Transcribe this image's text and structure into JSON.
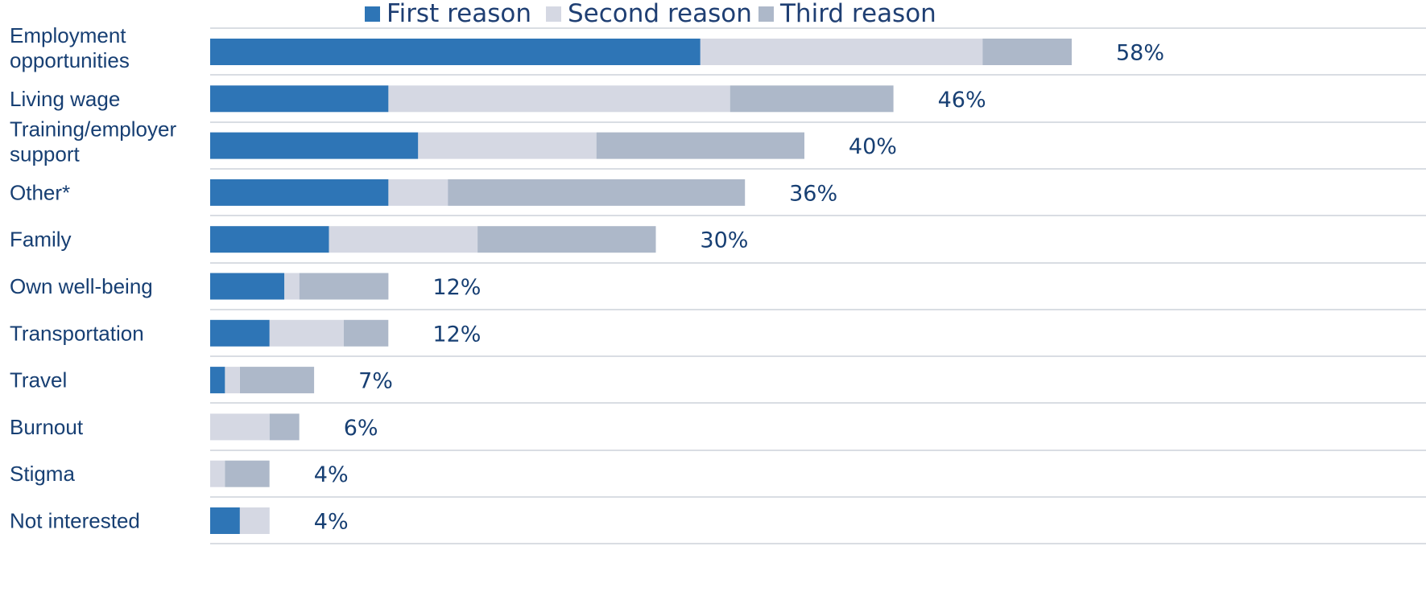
{
  "chart_data": {
    "type": "bar",
    "orientation": "horizontal",
    "stacked": true,
    "title": "",
    "xlabel": "",
    "ylabel": "",
    "legend_position": "top",
    "grid": false,
    "value_unit": "%",
    "categories": [
      "Employment opportunities",
      "Living wage",
      "Training/employer support",
      "Other*",
      "Family",
      "Own well-being",
      "Transportation",
      "Travel",
      "Burnout",
      "Stigma",
      "Not interested"
    ],
    "category_label_lines": [
      [
        "Employment",
        "opportunities"
      ],
      [
        "Living wage"
      ],
      [
        "Training/employer",
        "support"
      ],
      [
        "Other*"
      ],
      [
        "Family"
      ],
      [
        "Own well-being"
      ],
      [
        "Transportation"
      ],
      [
        "Travel"
      ],
      [
        "Burnout"
      ],
      [
        "Stigma"
      ],
      [
        "Not interested"
      ]
    ],
    "series": [
      {
        "name": "First reason",
        "color": "#2e75b6",
        "values": [
          33,
          12,
          14,
          12,
          8,
          5,
          4,
          1,
          0,
          0,
          2
        ]
      },
      {
        "name": "Second reason",
        "color": "#d5d8e3",
        "values": [
          19,
          23,
          12,
          4,
          10,
          1,
          5,
          1,
          4,
          1,
          2
        ]
      },
      {
        "name": "Third reason",
        "color": "#adb8c9",
        "values": [
          6,
          11,
          14,
          20,
          12,
          6,
          3,
          5,
          2,
          3,
          0
        ]
      }
    ],
    "totals": [
      "58%",
      "46%",
      "40%",
      "36%",
      "30%",
      "12%",
      "12%",
      "7%",
      "6%",
      "4%",
      "4%"
    ],
    "xlim": [
      0,
      58
    ]
  }
}
